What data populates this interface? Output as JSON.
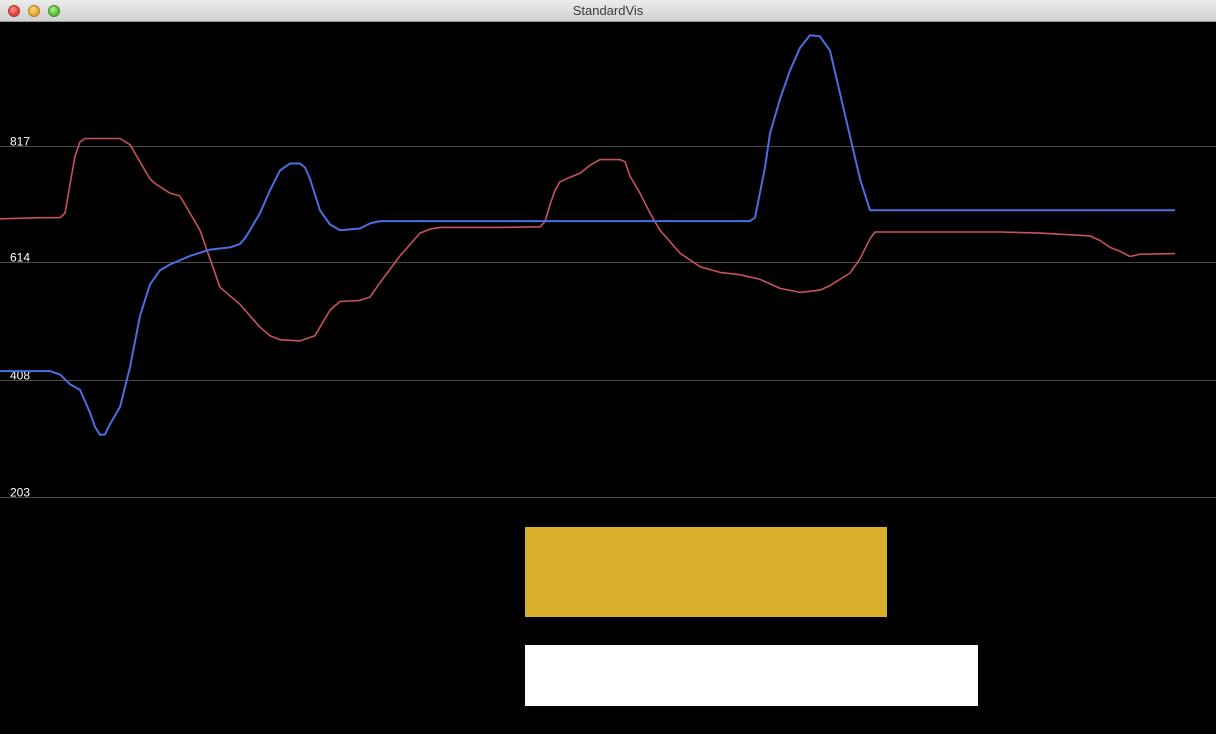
{
  "window": {
    "title": "StandardVis"
  },
  "chart_data": {
    "type": "line",
    "ylim": [
      203,
      1030
    ],
    "xlim": [
      0,
      1175
    ],
    "grid": true,
    "y_ticks": [
      203,
      408,
      614,
      817
    ],
    "y_tick_labels": [
      "203",
      "408",
      "614",
      "817"
    ],
    "series": [
      {
        "color": "#c5525c",
        "x": [
          0,
          20,
          40,
          60,
          65,
          70,
          75,
          80,
          85,
          120,
          130,
          140,
          150,
          155,
          170,
          180,
          190,
          195,
          200,
          210,
          220,
          240,
          250,
          260,
          270,
          280,
          300,
          315,
          320,
          330,
          340,
          360,
          370,
          380,
          400,
          420,
          430,
          440,
          500,
          540,
          545,
          550,
          555,
          560,
          570,
          580,
          590,
          600,
          620,
          625,
          630,
          640,
          650,
          660,
          680,
          700,
          720,
          740,
          760,
          780,
          800,
          820,
          830,
          850,
          860,
          870,
          875,
          900,
          1000,
          1040,
          1090,
          1100,
          1110,
          1120,
          1130,
          1140,
          1175
        ],
        "y": [
          690,
          691,
          692,
          692,
          700,
          750,
          800,
          825,
          831,
          831,
          820,
          790,
          760,
          752,
          735,
          730,
          700,
          685,
          670,
          620,
          570,
          540,
          520,
          500,
          485,
          478,
          476,
          485,
          500,
          530,
          545,
          547,
          553,
          578,
          625,
          665,
          672,
          675,
          675,
          676,
          685,
          715,
          740,
          755,
          763,
          770,
          784,
          794,
          794,
          790,
          765,
          735,
          700,
          670,
          630,
          606,
          596,
          592,
          584,
          568,
          561,
          565,
          573,
          595,
          620,
          655,
          667,
          667,
          667,
          665,
          660,
          652,
          640,
          633,
          624,
          628,
          629
        ]
      },
      {
        "color": "#4a6fe0",
        "x": [
          0,
          50,
          60,
          70,
          80,
          90,
          95,
          100,
          105,
          110,
          120,
          130,
          140,
          150,
          160,
          170,
          190,
          210,
          230,
          240,
          245,
          250,
          260,
          270,
          280,
          290,
          300,
          305,
          310,
          320,
          330,
          340,
          360,
          370,
          380,
          500,
          700,
          750,
          755,
          765,
          770,
          780,
          790,
          800,
          810,
          820,
          830,
          840,
          850,
          860,
          870,
          880,
          1000,
          1175
        ],
        "y": [
          423,
          423,
          417,
          400,
          390,
          350,
          325,
          311,
          312,
          330,
          360,
          430,
          520,
          575,
          600,
          610,
          625,
          636,
          640,
          646,
          656,
          670,
          700,
          740,
          775,
          787,
          787,
          780,
          760,
          705,
          680,
          670,
          673,
          682,
          686,
          686,
          686,
          686,
          692,
          780,
          840,
          900,
          950,
          990,
          1012,
          1010,
          985,
          910,
          835,
          760,
          705,
          705,
          705,
          705
        ]
      }
    ]
  }
}
